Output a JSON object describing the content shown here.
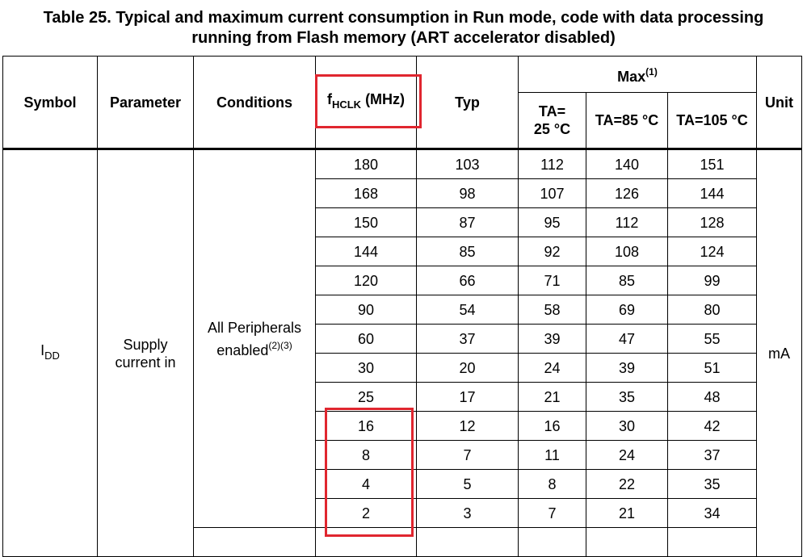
{
  "caption": {
    "line1": "Table 25. Typical and maximum current consumption in Run mode, code with data processing",
    "line2": "running from Flash memory (ART accelerator disabled)"
  },
  "header": {
    "symbol": "Symbol",
    "parameter": "Parameter",
    "conditions": "Conditions",
    "fhclk_main": "f",
    "fhclk_sub": "HCLK",
    "fhclk_unit": " (MHz)",
    "typ": "Typ",
    "max": "Max",
    "max_note": "(1)",
    "ta25_line1": "TA=",
    "ta25_line2": "25 °C",
    "ta85": "TA=85 °C",
    "ta105": "TA=105 °C",
    "unit": "Unit"
  },
  "group": {
    "symbol_main": "I",
    "symbol_sub": "DD",
    "parameter_line1": "Supply",
    "parameter_line2": "current in",
    "conditions_line1": "All Peripherals",
    "conditions_line2": "enabled",
    "conditions_notes": "(2)(3)",
    "unit": "mA"
  },
  "rows": [
    {
      "fhclk": "180",
      "typ": "103",
      "ta25": "112",
      "ta85": "140",
      "ta105": "151"
    },
    {
      "fhclk": "168",
      "typ": "98",
      "ta25": "107",
      "ta85": "126",
      "ta105": "144"
    },
    {
      "fhclk": "150",
      "typ": "87",
      "ta25": "95",
      "ta85": "112",
      "ta105": "128"
    },
    {
      "fhclk": "144",
      "typ": "85",
      "ta25": "92",
      "ta85": "108",
      "ta105": "124"
    },
    {
      "fhclk": "120",
      "typ": "66",
      "ta25": "71",
      "ta85": "85",
      "ta105": "99"
    },
    {
      "fhclk": "90",
      "typ": "54",
      "ta25": "58",
      "ta85": "69",
      "ta105": "80"
    },
    {
      "fhclk": "60",
      "typ": "37",
      "ta25": "39",
      "ta85": "47",
      "ta105": "55"
    },
    {
      "fhclk": "30",
      "typ": "20",
      "ta25": "24",
      "ta85": "39",
      "ta105": "51"
    },
    {
      "fhclk": "25",
      "typ": "17",
      "ta25": "21",
      "ta85": "35",
      "ta105": "48"
    },
    {
      "fhclk": "16",
      "typ": "12",
      "ta25": "16",
      "ta85": "30",
      "ta105": "42"
    },
    {
      "fhclk": "8",
      "typ": "7",
      "ta25": "11",
      "ta85": "24",
      "ta105": "37"
    },
    {
      "fhclk": "4",
      "typ": "5",
      "ta25": "8",
      "ta85": "22",
      "ta105": "35"
    },
    {
      "fhclk": "2",
      "typ": "3",
      "ta25": "7",
      "ta85": "21",
      "ta105": "34"
    }
  ],
  "highlight_color": "#e0262f"
}
